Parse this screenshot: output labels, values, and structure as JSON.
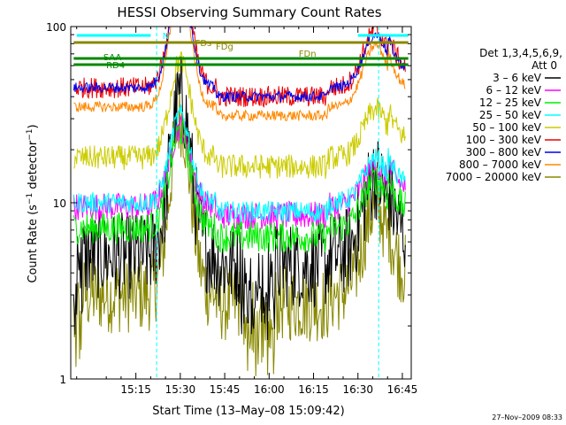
{
  "chart_data": {
    "type": "line",
    "title": "HESSI Observing Summary Count Rates",
    "xlabel": "Start Time (13–May–08 15:09:42)",
    "ylabel_main": "Count Rate (s",
    "ylabel_sup1": "−1",
    "ylabel_mid": " detector",
    "ylabel_sup2": "−1",
    "ylabel_end": ")",
    "timestamp": "27–Nov–2009 08:33",
    "x_range_min": [
      15,
      165
    ],
    "x_ticks": [
      {
        "min": 15,
        "label": "15:15"
      },
      {
        "min": 30,
        "label": "15:30"
      },
      {
        "min": 45,
        "label": "15:45"
      },
      {
        "min": 60,
        "label": "16:00"
      },
      {
        "min": 75,
        "label": "16:15"
      },
      {
        "min": 90,
        "label": "16:30"
      },
      {
        "min": 105,
        "label": "16:45"
      }
    ],
    "y_scale": "log",
    "y_range": [
      1,
      100
    ],
    "y_ticks": [
      {
        "value": 1,
        "label": "1"
      },
      {
        "value": 10,
        "label": "10"
      },
      {
        "value": 100,
        "label": "100"
      }
    ],
    "detector_text": "Det 1,3,4,5,6,9,",
    "atten_text": "Att 0",
    "legend": [
      {
        "label": "3 – 6 keV",
        "color": "#000000"
      },
      {
        "label": "6 – 12 keV",
        "color": "#ff00ff"
      },
      {
        "label": "12 – 25 keV",
        "color": "#00ee00"
      },
      {
        "label": "25 – 50 keV",
        "color": "#00ffff"
      },
      {
        "label": "50 – 100 keV",
        "color": "#cccc00"
      },
      {
        "label": "100 – 300 keV",
        "color": "#ee0000"
      },
      {
        "label": "300 – 800 keV",
        "color": "#0000ee"
      },
      {
        "label": "800 – 7000 keV",
        "color": "#ff8800"
      },
      {
        "label": "7000 – 20000 keV",
        "color": "#888800"
      }
    ],
    "flags": [
      {
        "label": "N",
        "color": "#00ffff"
      },
      {
        "label": "FDs",
        "color": "#888800"
      },
      {
        "label": "FDg",
        "color": "#888800"
      },
      {
        "label": "FDn",
        "color": "#888800"
      },
      {
        "label": "SAA",
        "color": "#008800"
      },
      {
        "label": "RD4",
        "color": "#008800"
      }
    ],
    "night_boundaries_min": [
      22,
      97
    ]
  }
}
